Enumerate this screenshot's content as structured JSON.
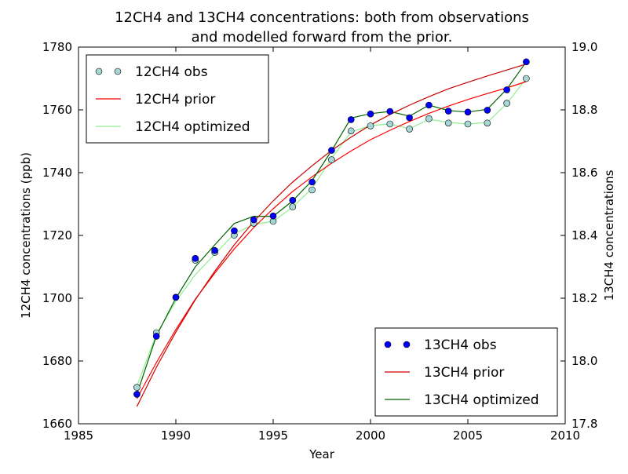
{
  "chart_data": {
    "type": "line",
    "title_line1": "12CH4 and 13CH4 concentrations: both from observations",
    "title_line2": "and modelled forward from the prior.",
    "xlabel": "Year",
    "ylabel_left": "12CH4 concentrations (ppb)",
    "ylabel_right": "13CH4 concentrations",
    "xlim": [
      1985,
      2010
    ],
    "ylim_left": [
      1660,
      1780
    ],
    "ylim_right": [
      17.8,
      19.0
    ],
    "x_ticks": [
      "1985",
      "1990",
      "1995",
      "2000",
      "2005",
      "2010"
    ],
    "y_ticks_left": [
      "1660",
      "1680",
      "1700",
      "1720",
      "1740",
      "1760",
      "1780"
    ],
    "y_ticks_right": [
      "17.8",
      "18.0",
      "18.2",
      "18.4",
      "18.6",
      "18.8",
      "19.0"
    ],
    "x": [
      1988,
      1989,
      1990,
      1991,
      1992,
      1993,
      1994,
      1995,
      1996,
      1997,
      1998,
      1999,
      2000,
      2001,
      2002,
      2003,
      2004,
      2005,
      2006,
      2007,
      2008
    ],
    "series": [
      {
        "name": "12CH4 obs",
        "axis": "left",
        "style": "marker",
        "color": "#a6d6d6",
        "values": [
          1671.6,
          1689.0,
          1700.3,
          1712.1,
          1714.6,
          1720.1,
          1723.9,
          1724.5,
          1729.1,
          1734.5,
          1744.1,
          1753.3,
          1754.9,
          1755.5,
          1753.9,
          1757.2,
          1755.8,
          1755.5,
          1755.8,
          1762.1,
          1770.0
        ]
      },
      {
        "name": "12CH4 prior",
        "axis": "left",
        "style": "line",
        "color": "#ff0000",
        "values": [
          1668.0,
          1679.5,
          1690.0,
          1699.7,
          1708.0,
          1715.7,
          1722.5,
          1728.5,
          1734.0,
          1738.7,
          1743.0,
          1746.9,
          1750.5,
          1753.5,
          1756.3,
          1758.9,
          1761.2,
          1763.3,
          1765.2,
          1767.0,
          1769.0
        ]
      },
      {
        "name": "12CH4 optimized",
        "axis": "left",
        "style": "line",
        "color": "#90ee90",
        "values": [
          1672.0,
          1688.5,
          1699.0,
          1707.5,
          1714.0,
          1720.5,
          1723.5,
          1724.5,
          1729.0,
          1735.0,
          1744.5,
          1753.0,
          1755.0,
          1755.5,
          1754.0,
          1757.0,
          1756.0,
          1755.5,
          1756.0,
          1762.0,
          1770.0
        ]
      },
      {
        "name": "13CH4 obs",
        "axis": "right",
        "style": "marker",
        "color": "#0000ff",
        "values": [
          17.894,
          18.079,
          18.203,
          18.327,
          18.352,
          18.415,
          18.45,
          18.462,
          18.512,
          18.57,
          18.671,
          18.769,
          18.787,
          18.795,
          18.775,
          18.815,
          18.796,
          18.793,
          18.799,
          18.864,
          18.953
        ]
      },
      {
        "name": "13CH4 prior",
        "axis": "right",
        "style": "line",
        "color": "#cc0000",
        "values": [
          17.855,
          17.98,
          18.092,
          18.195,
          18.286,
          18.37,
          18.444,
          18.51,
          18.57,
          18.622,
          18.671,
          18.713,
          18.752,
          18.785,
          18.815,
          18.842,
          18.867,
          18.888,
          18.908,
          18.927,
          18.946
        ]
      },
      {
        "name": "13CH4 optimized",
        "axis": "right",
        "style": "line",
        "color": "#006400",
        "values": [
          17.894,
          18.08,
          18.2,
          18.3,
          18.37,
          18.438,
          18.461,
          18.461,
          18.51,
          18.575,
          18.67,
          18.774,
          18.788,
          18.795,
          18.78,
          18.815,
          18.798,
          18.793,
          18.802,
          18.866,
          18.953
        ]
      }
    ],
    "legend_left": {
      "placement": "top-left",
      "entries": [
        "12CH4 obs",
        "12CH4 prior",
        "12CH4 optimized"
      ]
    },
    "legend_right": {
      "placement": "lower-right",
      "entries": [
        "13CH4 obs",
        "13CH4 prior",
        "13CH4 optimized"
      ]
    },
    "grid": false
  }
}
